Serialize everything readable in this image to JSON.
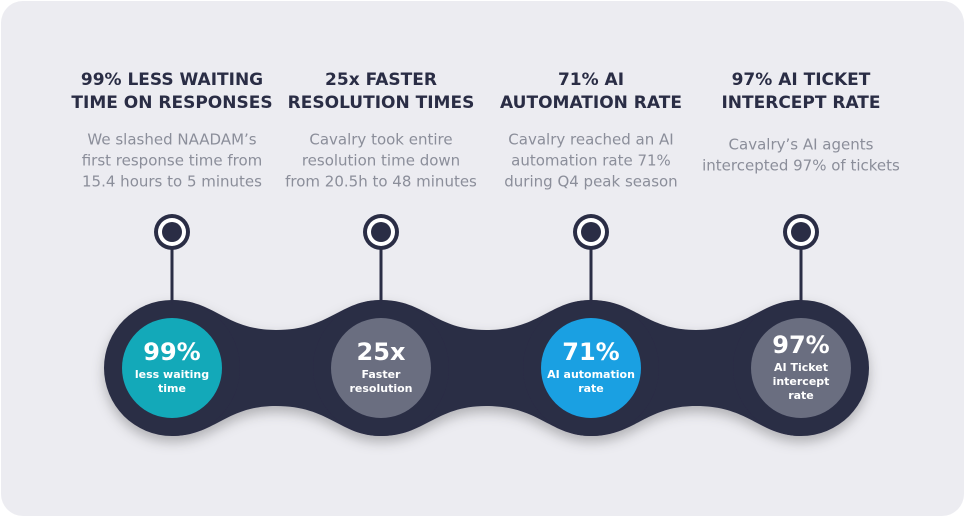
{
  "items": [
    {
      "title": [
        "99% LESS WAITING",
        "TIME ON RESPONSES"
      ],
      "description": [
        "We slashed NAADAM’s",
        "first response time from",
        "15.4 hours to 5 minutes"
      ],
      "stat": "99%",
      "label": [
        "less waiting",
        "time"
      ]
    },
    {
      "title": [
        "25x FASTER",
        "RESOLUTION TIMES"
      ],
      "description": [
        "Cavalry took entire",
        "resolution time down",
        "from 20.5h to 48 minutes"
      ],
      "stat": "25x",
      "label": [
        "Faster",
        "resolution"
      ]
    },
    {
      "title": [
        "71% AI",
        "AUTOMATION RATE"
      ],
      "description": [
        "Cavalry reached an AI",
        "automation rate 71%",
        "during Q4 peak season"
      ],
      "stat": "71%",
      "label": [
        "AI automation",
        "rate"
      ]
    },
    {
      "title": [
        "97% AI TICKET",
        "INTERCEPT RATE"
      ],
      "description": [
        "Cavalry’s AI agents",
        "intercepted 97% of tickets"
      ],
      "stat": "97%",
      "label": [
        "AI Ticket",
        "intercept",
        "rate"
      ]
    }
  ]
}
